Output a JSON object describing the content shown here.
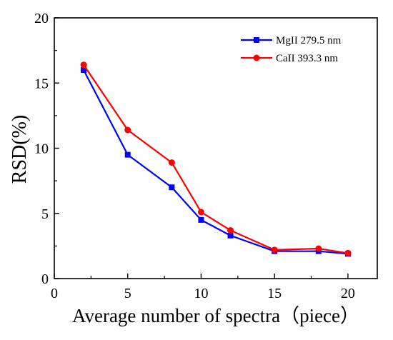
{
  "chart_data": {
    "type": "line",
    "xlabel": "Average number of spectra（piece）",
    "ylabel": "RSD(%)",
    "xlim": [
      0,
      22
    ],
    "ylim": [
      0,
      20
    ],
    "x_ticks": [
      0,
      5,
      10,
      15,
      20
    ],
    "y_ticks": [
      0,
      5,
      10,
      15,
      20
    ],
    "grid": false,
    "legend_position": "top-right",
    "series": [
      {
        "name": "MgII 279.5 nm",
        "color": "#0000ff",
        "marker": "square",
        "x": [
          2,
          5,
          8,
          10,
          12,
          15,
          18,
          20
        ],
        "y": [
          16.0,
          9.5,
          7.0,
          4.5,
          3.3,
          2.1,
          2.1,
          1.9
        ]
      },
      {
        "name": "CaII  393.3 nm",
        "color": "#ff0000",
        "marker": "circle",
        "x": [
          2,
          5,
          8,
          10,
          12,
          15,
          18,
          20
        ],
        "y": [
          16.4,
          11.4,
          8.9,
          5.1,
          3.7,
          2.2,
          2.3,
          1.95
        ]
      }
    ]
  }
}
